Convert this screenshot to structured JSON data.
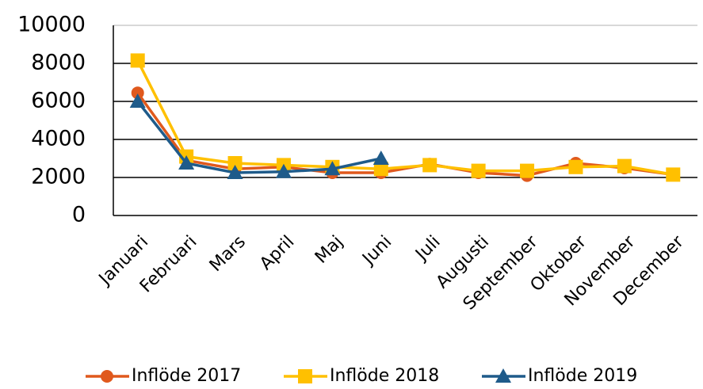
{
  "chart_data": {
    "type": "line",
    "categories": [
      "Januari",
      "Februari",
      "Mars",
      "April",
      "Maj",
      "Juni",
      "Juli",
      "Augusti",
      "September",
      "Oktober",
      "November",
      "December"
    ],
    "series": [
      {
        "name": "Inflöde 2017",
        "color": "#e0591d",
        "marker": "circle",
        "values": [
          6450,
          2900,
          2450,
          2550,
          2250,
          2250,
          2700,
          2250,
          2100,
          2750,
          2500,
          2150
        ]
      },
      {
        "name": "Inflöde 2018",
        "color": "#ffc000",
        "marker": "square",
        "values": [
          8150,
          3100,
          2750,
          2650,
          2550,
          2450,
          2650,
          2350,
          2350,
          2550,
          2600,
          2150
        ]
      },
      {
        "name": "Inflöde 2019",
        "color": "#1f5b8a",
        "marker": "triangle",
        "values": [
          6000,
          2750,
          2250,
          2300,
          2450,
          3000,
          null,
          null,
          null,
          null,
          null,
          null
        ]
      }
    ],
    "ylim": [
      0,
      10000
    ],
    "yticks": [
      0,
      2000,
      4000,
      6000,
      8000,
      10000
    ],
    "grid": true,
    "legend": "bottom"
  }
}
